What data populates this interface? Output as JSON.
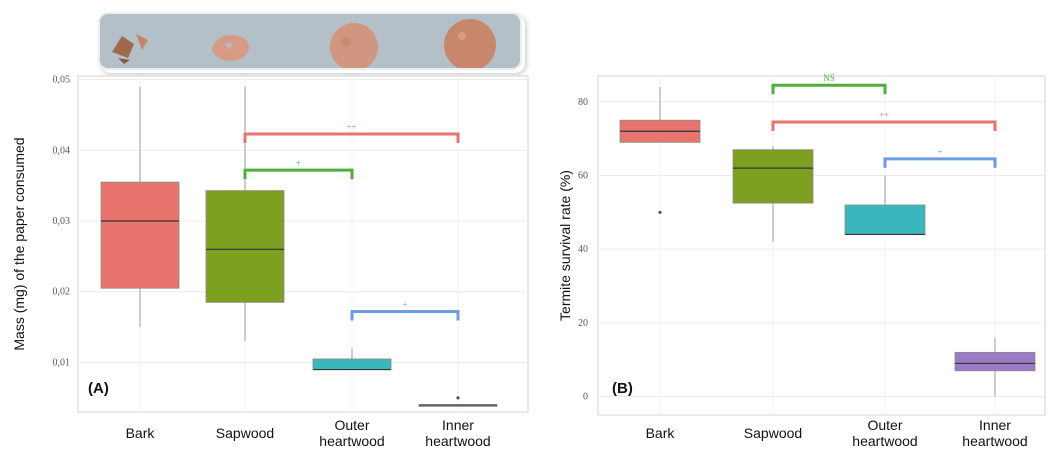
{
  "chart_data": [
    {
      "type": "box",
      "panel_label": "(A)",
      "ylabel": "Mass (mg) of the paper consumed",
      "categories": [
        "Bark",
        "Sapwood",
        "Outer\nheartwood",
        "Inner\nheartwood"
      ],
      "ylim": [
        0.003,
        0.0505
      ],
      "yticks": [
        "0,01",
        "0,02",
        "0,03",
        "0,04",
        "0,05"
      ],
      "ytick_values": [
        0.01,
        0.02,
        0.03,
        0.04,
        0.05
      ],
      "grid": true,
      "boxes": [
        {
          "category": "Bark",
          "whisker_low": 0.015,
          "q1": 0.0205,
          "median": 0.03,
          "q3": 0.0355,
          "whisker_high": 0.049,
          "color": "#e8756d",
          "outliers": []
        },
        {
          "category": "Sapwood",
          "whisker_low": 0.013,
          "q1": 0.0185,
          "median": 0.026,
          "q3": 0.0343,
          "whisker_high": 0.049,
          "color": "#7da021",
          "outliers": []
        },
        {
          "category": "Outer heartwood",
          "whisker_low": 0.009,
          "q1": 0.009,
          "median": 0.009,
          "q3": 0.0105,
          "whisker_high": 0.012,
          "color": "#39b7bd",
          "outliers": []
        },
        {
          "category": "Inner heartwood",
          "whisker_low": 0.004,
          "q1": 0.004,
          "median": 0.004,
          "q3": 0.004,
          "whisker_high": 0.004,
          "color": "#9b7cc4",
          "outliers": [
            0.005
          ]
        }
      ],
      "comparisons": [
        {
          "from": 1,
          "to": 3,
          "label": "++",
          "y": 0.0423,
          "color": "#e8756d"
        },
        {
          "from": 1,
          "to": 2,
          "label": "+",
          "y": 0.0372,
          "color": "#4db03a"
        },
        {
          "from": 2,
          "to": 3,
          "label": "+",
          "y": 0.0172,
          "color": "#6f9be0"
        }
      ]
    },
    {
      "type": "box",
      "panel_label": "(B)",
      "ylabel": "Termite survival rate (%)",
      "categories": [
        "Bark",
        "Sapwood",
        "Outer\nheartwood",
        "Inner\nheartwood"
      ],
      "ylim": [
        -5,
        87
      ],
      "yticks": [
        "0",
        "20",
        "40",
        "60",
        "80"
      ],
      "ytick_values": [
        0,
        20,
        40,
        60,
        80
      ],
      "grid": true,
      "boxes": [
        {
          "category": "Bark",
          "whisker_low": 69,
          "q1": 69,
          "median": 72,
          "q3": 75,
          "whisker_high": 84,
          "color": "#e8756d",
          "outliers": [
            50
          ]
        },
        {
          "category": "Sapwood",
          "whisker_low": 42,
          "q1": 52.5,
          "median": 62,
          "q3": 67,
          "whisker_high": 68,
          "color": "#7da021",
          "outliers": []
        },
        {
          "category": "Outer heartwood",
          "whisker_low": 44,
          "q1": 44,
          "median": 44,
          "q3": 52,
          "whisker_high": 60,
          "color": "#39b7bd",
          "outliers": []
        },
        {
          "category": "Inner heartwood",
          "whisker_low": 0,
          "q1": 7,
          "median": 9,
          "q3": 12,
          "whisker_high": 16,
          "color": "#9b7cc4",
          "outliers": []
        }
      ],
      "comparisons": [
        {
          "from": 1,
          "to": 2,
          "label": "NS",
          "y": 84.5,
          "color": "#4db03a"
        },
        {
          "from": 1,
          "to": 3,
          "label": "++",
          "y": 74.5,
          "color": "#e8756d"
        },
        {
          "from": 2,
          "to": 3,
          "label": "+",
          "y": 64.5,
          "color": "#6f9be0"
        }
      ]
    }
  ]
}
